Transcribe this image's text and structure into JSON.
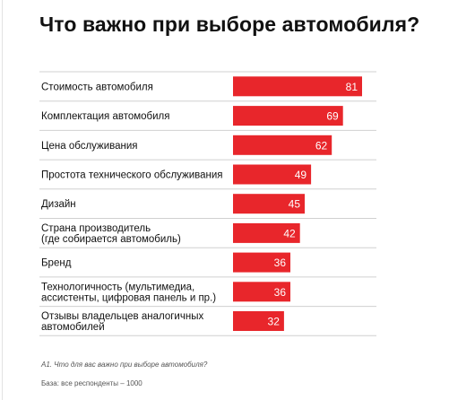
{
  "chart_data": {
    "type": "bar",
    "orientation": "horizontal",
    "title": "Что важно при выборе автомобиля?",
    "categories": [
      [
        "Стоимость автомобиля"
      ],
      [
        "Комплектация автомобиля"
      ],
      [
        "Цена обслуживания"
      ],
      [
        "Простота технического обслуживания"
      ],
      [
        "Дизайн"
      ],
      [
        "Страна производитель",
        "(где собирается автомобиль)"
      ],
      [
        "Бренд"
      ],
      [
        "Технологичность (мультимедиа,",
        "ассистенты, цифровая панель и пр.)"
      ],
      [
        "Отзывы владельцев аналогичных",
        "автомобилей"
      ]
    ],
    "values": [
      81,
      69,
      62,
      49,
      45,
      42,
      36,
      36,
      32
    ],
    "xlim": [
      0,
      81
    ],
    "bar_color": "#e8262b",
    "label_color": "#ffffff",
    "separator_color": "#d0d0d0",
    "grid": false
  },
  "footnote": "А1. Что для вас важно при выборе автомобиля?",
  "base_note": "База: все респонденты – 1000"
}
